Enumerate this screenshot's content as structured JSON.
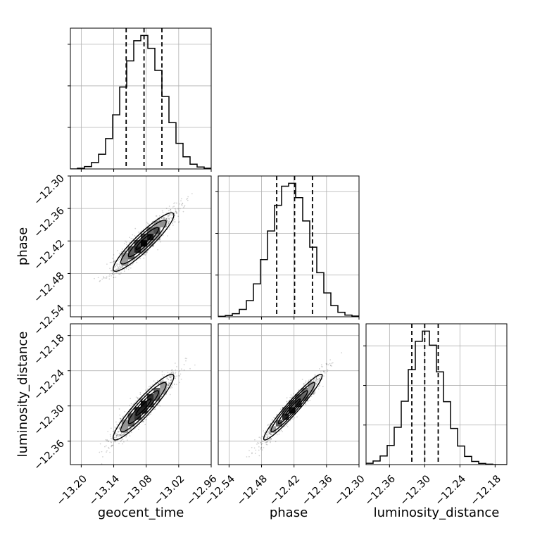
{
  "chart_data": {
    "type": "corner",
    "parameters": [
      "geocent_time",
      "phase",
      "luminosity_distance"
    ],
    "axis_titles": {
      "x": [
        "geocent_time",
        "phase",
        "luminosity_distance"
      ],
      "y": [
        "",
        "phase",
        "luminosity_distance"
      ]
    },
    "ranges": [
      [
        -13.22,
        -12.96
      ],
      [
        -12.56,
        -12.3
      ],
      [
        -12.4,
        -12.16
      ]
    ],
    "ticks": [
      [
        -13.2,
        -13.14,
        -13.08,
        -13.02,
        -12.96
      ],
      [
        -12.54,
        -12.48,
        -12.42,
        -12.36,
        -12.3
      ],
      [
        -12.36,
        -12.3,
        -12.24,
        -12.18
      ]
    ],
    "tick_labels": [
      [
        "−13.20",
        "−13.14",
        "−13.08",
        "−13.02",
        "−12.96"
      ],
      [
        "−12.54",
        "−12.48",
        "−12.42",
        "−12.36",
        "−12.30"
      ],
      [
        "−12.36",
        "−12.30",
        "−12.24",
        "−12.18"
      ]
    ],
    "diagonals": [
      {
        "parameter": "geocent_time",
        "bin_edges": [
          -13.22,
          -13.207,
          -13.194,
          -13.181,
          -13.168,
          -13.155,
          -13.142,
          -13.129,
          -13.116,
          -13.103,
          -13.09,
          -13.077,
          -13.064,
          -13.051,
          -13.038,
          -13.025,
          -13.012,
          -12.999,
          -12.986,
          -12.973,
          -12.96
        ],
        "counts": [
          0,
          3,
          10,
          27,
          62,
          128,
          228,
          345,
          455,
          540,
          562,
          508,
          415,
          305,
          195,
          108,
          51,
          20,
          8,
          3
        ],
        "quantiles": [
          -13.117,
          -13.084,
          -13.051
        ]
      },
      {
        "parameter": "phase",
        "bin_edges": [
          -12.56,
          -12.547,
          -12.534,
          -12.521,
          -12.508,
          -12.495,
          -12.482,
          -12.469,
          -12.456,
          -12.443,
          -12.43,
          -12.417,
          -12.404,
          -12.391,
          -12.378,
          -12.365,
          -12.352,
          -12.339,
          -12.326,
          -12.313,
          -12.3
        ],
        "counts": [
          2,
          5,
          13,
          31,
          68,
          138,
          240,
          360,
          468,
          548,
          560,
          500,
          402,
          292,
          185,
          100,
          47,
          19,
          7,
          3
        ],
        "quantiles": [
          -12.452,
          -12.419,
          -12.386
        ]
      },
      {
        "parameter": "luminosity_distance",
        "bin_edges": [
          -12.4,
          -12.388,
          -12.376,
          -12.364,
          -12.352,
          -12.34,
          -12.328,
          -12.316,
          -12.304,
          -12.292,
          -12.28,
          -12.268,
          -12.256,
          -12.244,
          -12.232,
          -12.22,
          -12.208,
          -12.196,
          -12.184,
          -12.172,
          -12.16
        ],
        "counts": [
          6,
          16,
          38,
          85,
          165,
          280,
          420,
          545,
          590,
          528,
          410,
          278,
          160,
          82,
          36,
          14,
          5,
          2,
          0,
          0
        ],
        "quantiles": [
          -12.322,
          -12.3,
          -12.277
        ]
      }
    ],
    "pairs": [
      {
        "x": "geocent_time",
        "y": "phase",
        "mean": [
          -13.085,
          -12.422
        ],
        "sd": [
          0.028,
          0.027
        ],
        "corr": 0.92
      },
      {
        "x": "geocent_time",
        "y": "luminosity_distance",
        "mean": [
          -13.085,
          -12.302
        ],
        "sd": [
          0.028,
          0.028
        ],
        "corr": 0.93
      },
      {
        "x": "phase",
        "y": "luminosity_distance",
        "mean": [
          -12.422,
          -12.302
        ],
        "sd": [
          0.027,
          0.028
        ],
        "corr": 0.96
      }
    ],
    "contour_levels": [
      0.118,
      0.393,
      0.675,
      0.865
    ],
    "grid": true,
    "legend": "none"
  }
}
